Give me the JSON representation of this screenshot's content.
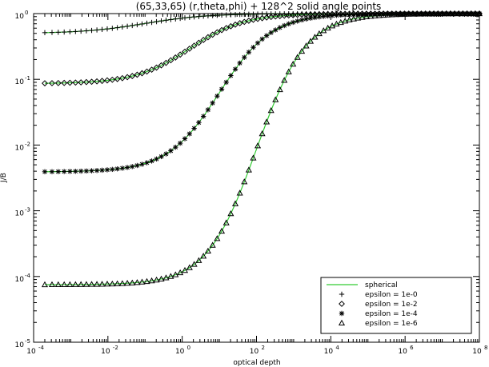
{
  "chart_data": {
    "type": "line",
    "title": "(65,33,65) (r,theta,phi) + 128^2 solid angle points",
    "xlabel": "optical depth",
    "ylabel": "J/B",
    "xscale": "log",
    "yscale": "log",
    "xlim": [
      0.0001,
      100000000
    ],
    "ylim": [
      1e-05,
      1
    ],
    "grid": false,
    "legend_position": "bottom-right",
    "x_ticks": [
      {
        "value": 0.0001,
        "base": "10",
        "exp": "-4"
      },
      {
        "value": 0.01,
        "base": "10",
        "exp": "-2"
      },
      {
        "value": 1,
        "base": "10",
        "exp": "0"
      },
      {
        "value": 100,
        "base": "10",
        "exp": "2"
      },
      {
        "value": 10000,
        "base": "10",
        "exp": "4"
      },
      {
        "value": 1000000,
        "base": "10",
        "exp": "6"
      },
      {
        "value": 100000000,
        "base": "10",
        "exp": "8"
      }
    ],
    "y_ticks": [
      {
        "value": 1,
        "base": "10",
        "exp": "0"
      },
      {
        "value": 0.1,
        "base": "10",
        "exp": "-1"
      },
      {
        "value": 0.01,
        "base": "10",
        "exp": "-2"
      },
      {
        "value": 0.001,
        "base": "10",
        "exp": "-3"
      },
      {
        "value": 0.0001,
        "base": "10",
        "exp": "-4"
      },
      {
        "value": 1e-05,
        "base": "10",
        "exp": "-5"
      }
    ],
    "series": [
      {
        "name": "epsilon = 1e-0",
        "marker": "plus",
        "floor": 0.5,
        "log_tau_mid": -1.0,
        "width": 0.55,
        "x_min": 0.0002,
        "x_max": 100000000
      },
      {
        "name": "epsilon = 1e-2",
        "marker": "diamond",
        "floor": 0.086,
        "log_tau_mid": 0.2,
        "width": 0.62,
        "x_min": 0.0002,
        "x_max": 100000000
      },
      {
        "name": "epsilon = 1e-4",
        "marker": "asterisk",
        "floor": 0.0039,
        "log_tau_mid": 1.0,
        "width": 0.65,
        "x_min": 0.0002,
        "x_max": 100000000
      },
      {
        "name": "epsilon = 1e-6",
        "marker": "triangle",
        "floor": 7.5e-05,
        "log_tau_mid": 2.0,
        "width": 0.68,
        "x_min": 0.0002,
        "x_max": 100000000
      }
    ],
    "reference_line": {
      "name": "spherical",
      "color": "#33cc33"
    }
  }
}
